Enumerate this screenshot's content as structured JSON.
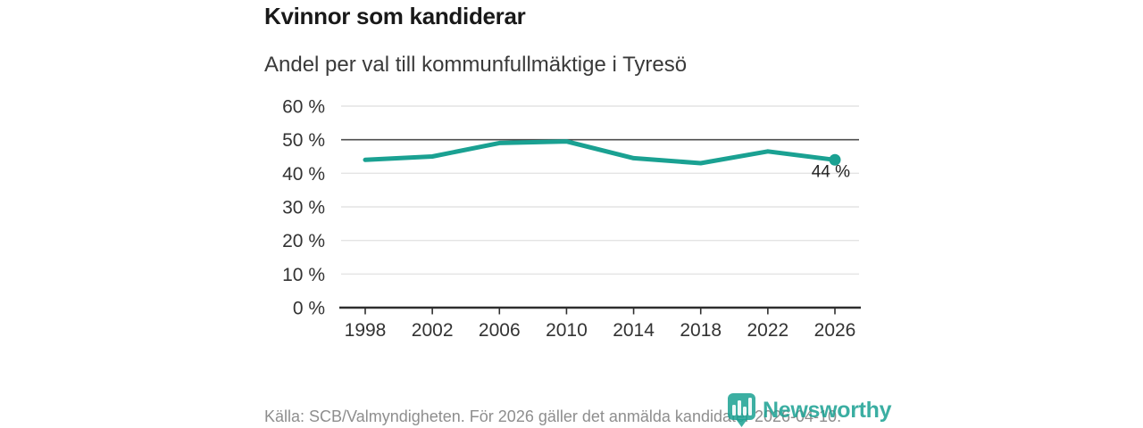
{
  "colors": {
    "accent": "#1aa192",
    "grid": "#e4e4e4",
    "grid_emphasis": "#4d4d4d",
    "axis": "#2e2e2e",
    "axis_text": "#333333",
    "data_label_text": "#222222"
  },
  "chart_data": {
    "type": "line",
    "title": "Kvinnor som kandiderar",
    "subtitle": "Andel per val till kommunfullmäktige i Tyresö",
    "categories": [
      "1998",
      "2002",
      "2006",
      "2010",
      "2014",
      "2018",
      "2022",
      "2026"
    ],
    "values": [
      44,
      45,
      49,
      49.5,
      44.5,
      43,
      46.5,
      44
    ],
    "end_label": "44 %",
    "ytick_values": [
      60,
      50,
      40,
      30,
      20,
      10,
      0
    ],
    "ytick_labels": [
      "60 %",
      "50 %",
      "40 %",
      "30 %",
      "20 %",
      "10 %",
      "0 %"
    ],
    "ylim": [
      0,
      60
    ],
    "emphasized_gridline": 50,
    "grid": true,
    "legend": "none",
    "xlabel": "",
    "ylabel": ""
  },
  "footer": {
    "source": "Källa: SCB/Valmyndigheten. För 2026 gäller det anmälda kandidater 2026-04-10.",
    "logo_text": "Newsworthy"
  }
}
